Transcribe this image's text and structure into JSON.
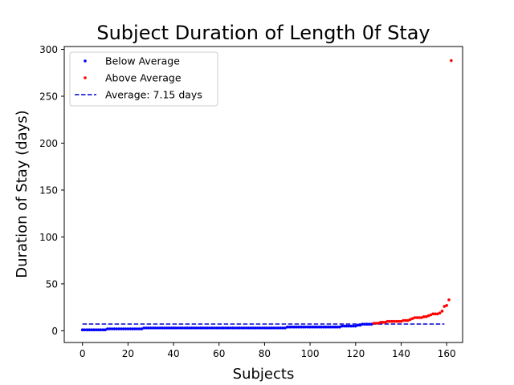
{
  "chart_data": {
    "type": "scatter",
    "title": "Subject Duration of Length 0f Stay",
    "xlabel": "Subjects",
    "ylabel": "Duration of Stay (days)",
    "xlim": [
      -8,
      167
    ],
    "ylim": [
      -12.5,
      303
    ],
    "xticks": [
      0,
      20,
      40,
      60,
      80,
      100,
      120,
      140,
      160
    ],
    "yticks": [
      0,
      50,
      100,
      150,
      200,
      250,
      300
    ],
    "legend_position": "top-left",
    "average": 7.15,
    "series": [
      {
        "name": "Below Average",
        "color": "#0000ff",
        "marker": "dot",
        "x_start": 0,
        "y": [
          1,
          1,
          1,
          1,
          1,
          1,
          1,
          1,
          1,
          1,
          1,
          2,
          2,
          2,
          2,
          2,
          2,
          2,
          2,
          2,
          2,
          2,
          2,
          2,
          2,
          2,
          2,
          3,
          3,
          3,
          3,
          3,
          3,
          3,
          3,
          3,
          3,
          3,
          3,
          3,
          3,
          3,
          3,
          3,
          3,
          3,
          3,
          3,
          3,
          3,
          3,
          3,
          3,
          3,
          3,
          3,
          3,
          3,
          3,
          3,
          3,
          3,
          3,
          3,
          3,
          3,
          3,
          3,
          3,
          3,
          3,
          3,
          3,
          3,
          3,
          3,
          3,
          3,
          3,
          3,
          3,
          3,
          3,
          3,
          3,
          3,
          3,
          3,
          3,
          3,
          4,
          4,
          4,
          4,
          4,
          4,
          4,
          4,
          4,
          4,
          4,
          4,
          4,
          4,
          4,
          4,
          4,
          4,
          4,
          4,
          4,
          4,
          4,
          4,
          5,
          5,
          5,
          5,
          5,
          5,
          5,
          6,
          6,
          7,
          7,
          7,
          7,
          7
        ]
      },
      {
        "name": "Above Average",
        "color": "#ff0000",
        "marker": "dot",
        "x_start": 128,
        "y": [
          8,
          8,
          8,
          9,
          9,
          9,
          10,
          10,
          10,
          10,
          10,
          10,
          10,
          11,
          11,
          11,
          12,
          13,
          14,
          14,
          14,
          14,
          15,
          15,
          16,
          17,
          18,
          18,
          18,
          19,
          21,
          26,
          27,
          33,
          288
        ]
      }
    ],
    "reference_lines": [
      {
        "name": "Average: 7.15 days",
        "color": "#0000cc",
        "style": "dashed",
        "y": 7.15,
        "x_from": 0,
        "x_to": 159
      }
    ]
  }
}
